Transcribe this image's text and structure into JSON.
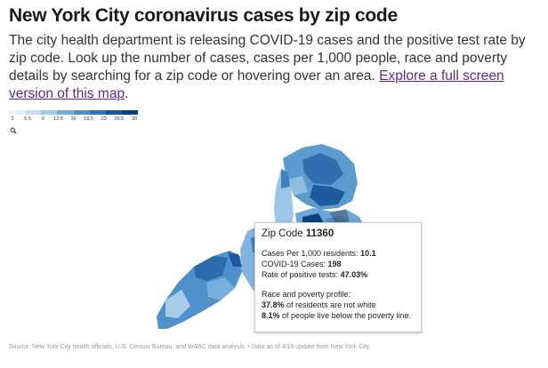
{
  "header": {
    "title": "New York City coronavirus cases by zip code",
    "description": "The city health department is releasing COVID-19 cases and the positive test rate by zip code. Look up the number of cases, cases per 1,000 people, race and poverty details by searching for a zip code or hovering over an area.",
    "link": "Explore a full screen version of this map",
    "link_suffix": "."
  },
  "legend": {
    "ticks": [
      2,
      5.5,
      9,
      12.5,
      16,
      19.5,
      23,
      26.5,
      30
    ]
  },
  "tooltip": {
    "zip_label": "Zip Code",
    "zip": "11360",
    "rows": [
      {
        "label": "Cases Per 1,000 residents:",
        "value": "10.1"
      },
      {
        "label": "COVID-19 Cases:",
        "value": "198"
      },
      {
        "label": "Rate of positive tests:",
        "value": "47.03%"
      }
    ],
    "profile_title": "Race and poverty profile:",
    "profile": [
      {
        "value": "37.8%",
        "text": "of residents are not white"
      },
      {
        "value": "8.1%",
        "text": "of people live below the poverty line."
      }
    ]
  },
  "footer": {
    "source": "Source: New York City health officials, U.S. Census Bureau, and WABC data analysis. • Data as of 4/16 update from New York City."
  }
}
